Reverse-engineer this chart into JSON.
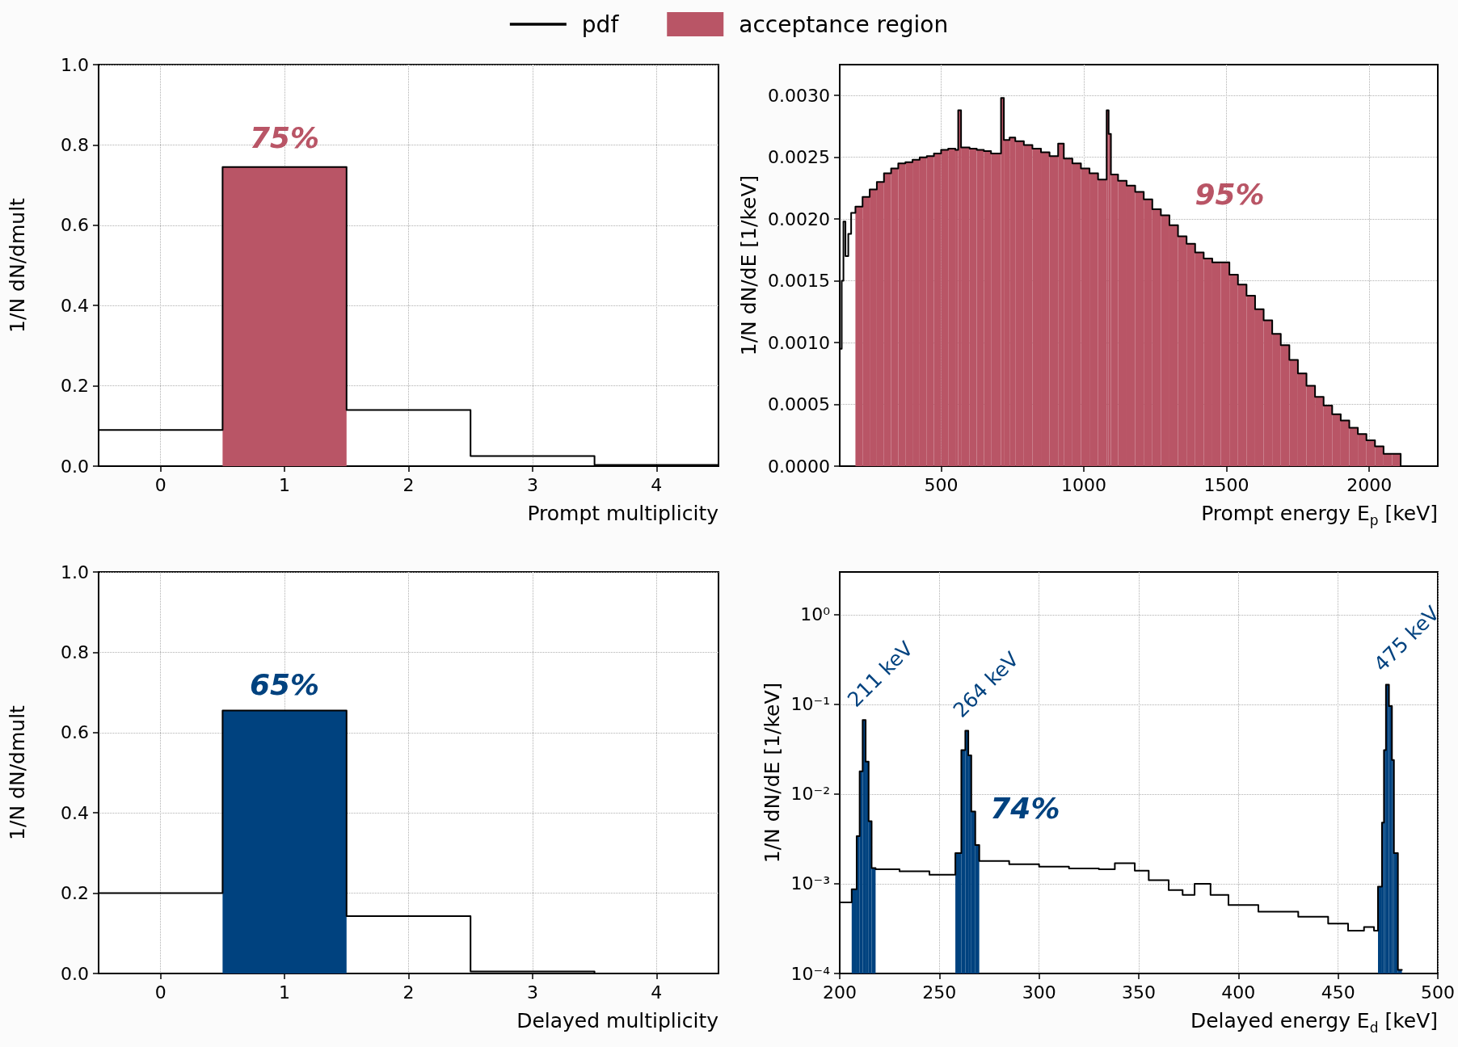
{
  "chart_data": [
    {
      "type": "histogram",
      "xlabel": "Prompt multiplicity",
      "ylabel": "1/N dN/dmult",
      "bins": [
        0.5,
        1.5
      ],
      "xlim": [
        -0.5,
        4.5
      ],
      "xticks": [
        0,
        1,
        2,
        3,
        4
      ],
      "ylim": [
        0,
        1
      ],
      "yticks": [
        {
          "value": 0,
          "label": "0.0"
        },
        0.2,
        0.4,
        0.6,
        0.8,
        {
          "value": 1,
          "label": "1.0"
        }
      ],
      "grid": true,
      "legend": "top",
      "series": [
        {
          "name": "pdf",
          "type": "step",
          "color": "#000000",
          "x": [
            -0.5,
            0.5,
            1.5,
            2.5,
            3.5,
            4.5
          ],
          "values": [
            0.09,
            0.745,
            0.14,
            0.025,
            0.003,
            0.003
          ]
        },
        {
          "name": "acceptance region",
          "color": "#b95566",
          "values": [
            0.745
          ]
        }
      ],
      "annotations": [
        "75%"
      ]
    },
    {
      "type": "histogram",
      "xlabel": "Prompt energy E$_{p}$ [keV]",
      "ylabel": "1/N dN/dE [1/keV]",
      "bins": [
        200,
        225,
        250,
        275,
        300,
        325,
        350,
        375,
        400,
        425,
        450,
        475,
        500,
        525,
        550,
        560,
        570,
        600,
        625,
        650,
        675,
        710,
        720,
        740,
        760,
        790,
        820,
        850,
        880,
        910,
        930,
        960,
        990,
        1020,
        1050,
        1080,
        1087,
        1095,
        1120,
        1150,
        1180,
        1210,
        1240,
        1270,
        1300,
        1330,
        1360,
        1390,
        1420,
        1450,
        1480,
        1510,
        1540,
        1570,
        1600,
        1630,
        1660,
        1690,
        1720,
        1750,
        1780,
        1810,
        1840,
        1870,
        1900,
        1930,
        1960,
        1990,
        2020,
        2050,
        2080,
        2110
      ],
      "xlim": [
        145,
        2240
      ],
      "xticks": [
        500,
        1000,
        1500,
        2000
      ],
      "ylim": [
        0,
        0.00325
      ],
      "yticks": [
        {
          "value": 0,
          "label": "0.0000"
        },
        {
          "value": 0.0005,
          "label": "0.0005"
        },
        {
          "value": 0.001,
          "label": "0.0010"
        },
        {
          "value": 0.0015,
          "label": "0.0015"
        },
        {
          "value": 0.002,
          "label": "0.0020"
        },
        {
          "value": 0.0025,
          "label": "0.0025"
        },
        {
          "value": 0.003,
          "label": "0.0030"
        }
      ],
      "grid": true,
      "series": [
        {
          "type": "step",
          "color": "#000000",
          "x": [
            145,
            152,
            158,
            165,
            175,
            185,
            200,
            225,
            250,
            275,
            300,
            325,
            350,
            375,
            400,
            425,
            450,
            475,
            500,
            525,
            550,
            560,
            570,
            600,
            625,
            650,
            675,
            710,
            720,
            740,
            760,
            790,
            820,
            850,
            880,
            910,
            930,
            960,
            990,
            1020,
            1050,
            1080,
            1087,
            1095,
            1120,
            1150,
            1180,
            1210,
            1240,
            1270,
            1300,
            1330,
            1360,
            1390,
            1420,
            1450,
            1480,
            1510,
            1540,
            1570,
            1600,
            1630,
            1660,
            1690,
            1720,
            1750,
            1780,
            1810,
            1840,
            1870,
            1900,
            1930,
            1960,
            1990,
            2020,
            2050,
            2080,
            2110,
            2140,
            2170,
            2200
          ],
          "values": [
            0.00095,
            0.0015,
            0.00198,
            0.0017,
            0.00188,
            0.00205,
            0.0021,
            0.00218,
            0.00224,
            0.0023,
            0.00237,
            0.00241,
            0.00245,
            0.00246,
            0.00248,
            0.0025,
            0.00251,
            0.00253,
            0.00256,
            0.00257,
            0.00256,
            0.00288,
            0.00258,
            0.00257,
            0.00256,
            0.00255,
            0.00253,
            0.00298,
            0.00264,
            0.00266,
            0.00263,
            0.0026,
            0.00257,
            0.00254,
            0.00251,
            0.00261,
            0.00249,
            0.00245,
            0.00241,
            0.00237,
            0.00232,
            0.00288,
            0.00269,
            0.00236,
            0.00231,
            0.00227,
            0.00222,
            0.00216,
            0.00208,
            0.00203,
            0.00195,
            0.00186,
            0.0018,
            0.00173,
            0.00168,
            0.00165,
            0.00165,
            0.00155,
            0.00147,
            0.00138,
            0.00127,
            0.00118,
            0.00107,
            0.00098,
            0.00086,
            0.00075,
            0.00065,
            0.00056,
            0.00049,
            0.00042,
            0.00037,
            0.00031,
            0.00026,
            0.00021,
            0.00016,
            0.0001,
            0.0001,
            0,
            0,
            0,
            0
          ]
        },
        {
          "color": "#b95566",
          "values": [
            0.0021,
            0.00218,
            0.00224,
            0.0023,
            0.00237,
            0.00241,
            0.00245,
            0.00246,
            0.00248,
            0.0025,
            0.00251,
            0.00253,
            0.00256,
            0.00257,
            0.00256,
            0.00288,
            0.00258,
            0.00257,
            0.00256,
            0.00255,
            0.00253,
            0.00298,
            0.00264,
            0.00266,
            0.00263,
            0.0026,
            0.00257,
            0.00254,
            0.00251,
            0.00261,
            0.00249,
            0.00245,
            0.00241,
            0.00237,
            0.00232,
            0.00288,
            0.00269,
            0.00236,
            0.00231,
            0.00227,
            0.00222,
            0.00216,
            0.00208,
            0.00203,
            0.00195,
            0.00186,
            0.0018,
            0.00173,
            0.00168,
            0.00165,
            0.00165,
            0.00155,
            0.00147,
            0.00138,
            0.00127,
            0.00118,
            0.00107,
            0.00098,
            0.00086,
            0.00075,
            0.00065,
            0.00056,
            0.00049,
            0.00042,
            0.00037,
            0.00031,
            0.00026,
            0.00021,
            0.00016,
            0.0001,
            0.0001
          ]
        }
      ],
      "annotations": [
        "95%"
      ]
    },
    {
      "type": "histogram",
      "xlabel": "Delayed multiplicity",
      "ylabel": "1/N dN/dmult",
      "bins": [
        0.5,
        1.5
      ],
      "xlim": [
        -0.5,
        4.5
      ],
      "xticks": [
        0,
        1,
        2,
        3,
        4
      ],
      "ylim": [
        0,
        1
      ],
      "yticks": [
        {
          "value": 0,
          "label": "0.0"
        },
        0.2,
        0.4,
        0.6,
        0.8,
        {
          "value": 1,
          "label": "1.0"
        }
      ],
      "grid": true,
      "series": [
        {
          "type": "step",
          "color": "#000000",
          "x": [
            -0.5,
            0.5,
            1.5,
            2.5,
            3.5,
            4.5
          ],
          "values": [
            0.2,
            0.655,
            0.143,
            0.005,
            0,
            0
          ]
        },
        {
          "color": "#00427f",
          "values": [
            0.655
          ]
        }
      ],
      "annotations": [
        "65%"
      ]
    },
    {
      "type": "histogram",
      "xlabel": "Delayed energy E$_{d}$ [keV]",
      "ylabel": "1/N dN/dE [1/keV]",
      "log": "y",
      "bins": [
        206,
        208.5,
        210,
        211.5,
        213,
        214.5,
        216,
        218,
        258,
        261,
        263,
        264.5,
        266,
        268,
        270,
        470,
        472,
        473,
        474,
        475.5,
        477,
        478,
        480,
        482
      ],
      "xlim": [
        200,
        500
      ],
      "xticks": [
        200,
        250,
        300,
        350,
        400,
        450,
        500
      ],
      "ylim": [
        0.0001,
        3
      ],
      "yticks": [
        {
          "value": 0.0001,
          "label": "10⁻⁴"
        },
        {
          "value": 0.001,
          "label": "10⁻³"
        },
        {
          "value": 0.01,
          "label": "10⁻²"
        },
        {
          "value": 0.1,
          "label": "10⁻¹"
        },
        {
          "value": 1,
          "label": "10⁰"
        }
      ],
      "grid": true,
      "series": [
        {
          "type": "step",
          "color": "#000000",
          "x": [
            200,
            206,
            208.5,
            210,
            211.5,
            213,
            214.5,
            216,
            218,
            230,
            245,
            258,
            261,
            263,
            264.5,
            266,
            268,
            270,
            285,
            300,
            315,
            330,
            338,
            348,
            355,
            365,
            372,
            378,
            386,
            395,
            410,
            430,
            445,
            455,
            463,
            468,
            470,
            472,
            473,
            474,
            475.5,
            477,
            478,
            480,
            482
          ],
          "values": [
            0.00062,
            0.00087,
            0.0034,
            0.018,
            0.067,
            0.023,
            0.005,
            0.0015,
            0.00145,
            0.00138,
            0.00126,
            0.0022,
            0.031,
            0.051,
            0.027,
            0.0064,
            0.0027,
            0.0018,
            0.00165,
            0.00155,
            0.00148,
            0.00145,
            0.0017,
            0.0014,
            0.0011,
            0.00085,
            0.00075,
            0.001,
            0.00075,
            0.00058,
            0.00049,
            0.00043,
            0.00036,
            0.0003,
            0.00033,
            0.0003,
            0.00093,
            0.0048,
            0.031,
            0.166,
            0.096,
            0.024,
            0.0022,
            0.00011,
            0.00011
          ]
        },
        {
          "color": "#00427f",
          "values": [
            0.00087,
            0.0034,
            0.018,
            0.067,
            0.023,
            0.005,
            0.0015,
            null,
            0.0022,
            0.031,
            0.051,
            0.027,
            0.0064,
            0.0027,
            null,
            0.00093,
            0.0048,
            0.031,
            0.166,
            0.096,
            0.024,
            0.0022,
            0.00011
          ]
        }
      ],
      "annotations": [
        "74%",
        {
          "text": "211 keV",
          "x": 211,
          "y": 0.067
        },
        {
          "text": "264 keV",
          "x": 264,
          "y": 0.051
        },
        {
          "text": "475 keV",
          "x": 475,
          "y": 0.166
        }
      ]
    }
  ]
}
